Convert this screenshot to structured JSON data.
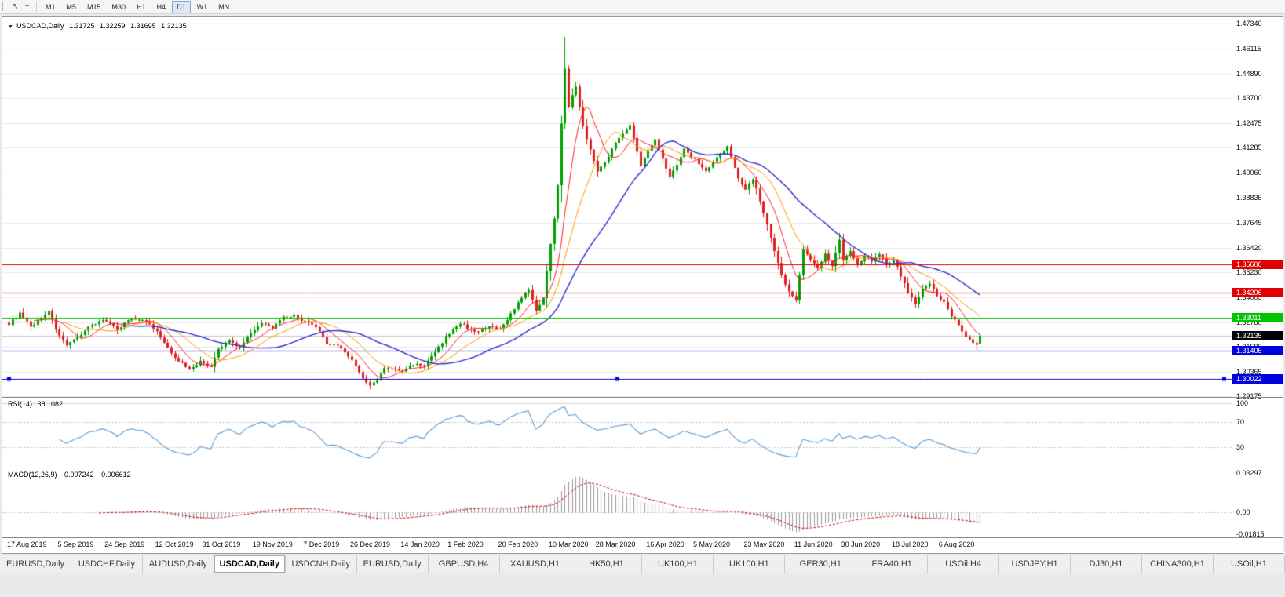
{
  "toolbar": {
    "left_icons": [
      {
        "name": "pointer-icon",
        "glyph": "↖"
      },
      {
        "name": "crosshair-icon",
        "glyph": "+"
      }
    ],
    "timeframes": [
      "M1",
      "M5",
      "M15",
      "M30",
      "H1",
      "H4",
      "D1",
      "W1",
      "MN"
    ],
    "active_timeframe": "D1"
  },
  "chart": {
    "symbol_title": "USDCAD,Daily",
    "ohlc": {
      "open": "1.31725",
      "high": "1.32259",
      "low": "1.31695",
      "close": "1.32135"
    },
    "price_axis": {
      "max": 1.4734,
      "min": 1.29175,
      "labels": [
        "1.47340",
        "1.46115",
        "1.44890",
        "1.43700",
        "1.42475",
        "1.41285",
        "1.40060",
        "1.38835",
        "1.37645",
        "1.36420",
        "1.35230",
        "1.34005",
        "1.32780",
        "1.31590",
        "1.30365",
        "1.29175"
      ]
    },
    "levels": [
      {
        "price": 1.35606,
        "label": "1.35606",
        "color": "#e00000"
      },
      {
        "price": 1.34206,
        "label": "1.34206",
        "color": "#e00000"
      },
      {
        "price": 1.33011,
        "label": "1.33011",
        "color": "#00c400"
      },
      {
        "price": 1.31405,
        "label": "1.31405",
        "color": "#0000dd"
      },
      {
        "price": 1.30022,
        "label": "1.30022",
        "color": "#0000dd",
        "handles": true
      }
    ],
    "current_price": {
      "value": 1.32135,
      "label": "1.32135",
      "bg": "#000000"
    },
    "date_ticks": [
      {
        "label": "17 Aug 2019",
        "i": 0
      },
      {
        "label": "5 Sep 2019",
        "i": 14
      },
      {
        "label": "24 Sep 2019",
        "i": 27
      },
      {
        "label": "12 Oct 2019",
        "i": 41
      },
      {
        "label": "31 Oct 2019",
        "i": 54
      },
      {
        "label": "19 Nov 2019",
        "i": 68
      },
      {
        "label": "7 Dec 2019",
        "i": 82
      },
      {
        "label": "26 Dec 2019",
        "i": 95
      },
      {
        "label": "14 Jan 2020",
        "i": 109
      },
      {
        "label": "1 Feb 2020",
        "i": 122
      },
      {
        "label": "20 Feb 2020",
        "i": 136
      },
      {
        "label": "10 Mar 2020",
        "i": 150
      },
      {
        "label": "28 Mar 2020",
        "i": 163
      },
      {
        "label": "16 Apr 2020",
        "i": 177
      },
      {
        "label": "5 May 2020",
        "i": 190
      },
      {
        "label": "23 May 2020",
        "i": 204
      },
      {
        "label": "11 Jun 2020",
        "i": 218
      },
      {
        "label": "30 Jun 2020",
        "i": 231
      },
      {
        "label": "18 Jul 2020",
        "i": 245
      },
      {
        "label": "6 Aug 2020",
        "i": 258
      }
    ]
  },
  "rsi": {
    "title": "RSI(14)",
    "value": "38.1082",
    "line_color": "#5b9bd5",
    "axis_labels": [
      {
        "v": 100,
        "label": "100"
      },
      {
        "v": 70,
        "label": "70"
      },
      {
        "v": 30,
        "label": "30"
      }
    ]
  },
  "macd": {
    "title": "MACD(12,26,9)",
    "value_main": "-0.007242",
    "value_signal": "-0.006612",
    "max": 0.03297,
    "min": -0.01815,
    "axis_labels": [
      {
        "v": 0.03297,
        "label": "0.03297"
      },
      {
        "v": 0,
        "label": "0.00"
      },
      {
        "v": -0.01815,
        "label": "-0.01815"
      }
    ]
  },
  "chart_data": {
    "type": "candlestick",
    "symbol": "USDCAD",
    "timeframe": "Daily",
    "x_range": [
      "17 Aug 2019",
      "mid Aug 2020"
    ],
    "y_range": [
      1.29175,
      1.4734
    ],
    "candles_total": 270,
    "noise": 0.0012,
    "close_waypoints": [
      [
        0,
        1.327
      ],
      [
        3,
        1.332
      ],
      [
        6,
        1.3255
      ],
      [
        9,
        1.33
      ],
      [
        11,
        1.3335
      ],
      [
        13,
        1.3245
      ],
      [
        16,
        1.316
      ],
      [
        19,
        1.3205
      ],
      [
        22,
        1.3255
      ],
      [
        26,
        1.329
      ],
      [
        30,
        1.3245
      ],
      [
        34,
        1.33
      ],
      [
        38,
        1.328
      ],
      [
        41,
        1.323
      ],
      [
        44,
        1.315
      ],
      [
        47,
        1.309
      ],
      [
        50,
        1.305
      ],
      [
        53,
        1.3085
      ],
      [
        56,
        1.306
      ],
      [
        58,
        1.3145
      ],
      [
        61,
        1.319
      ],
      [
        64,
        1.3155
      ],
      [
        67,
        1.323
      ],
      [
        70,
        1.327
      ],
      [
        73,
        1.325
      ],
      [
        76,
        1.33
      ],
      [
        79,
        1.331
      ],
      [
        82,
        1.328
      ],
      [
        85,
        1.3255
      ],
      [
        88,
        1.3175
      ],
      [
        91,
        1.3165
      ],
      [
        94,
        1.3115
      ],
      [
        96,
        1.307
      ],
      [
        98,
        1.3
      ],
      [
        100,
        1.2968
      ],
      [
        102,
        1.2995
      ],
      [
        104,
        1.3055
      ],
      [
        107,
        1.3045
      ],
      [
        109,
        1.304
      ],
      [
        112,
        1.3075
      ],
      [
        115,
        1.3065
      ],
      [
        118,
        1.313
      ],
      [
        121,
        1.3205
      ],
      [
        123,
        1.324
      ],
      [
        125,
        1.3275
      ],
      [
        127,
        1.325
      ],
      [
        130,
        1.323
      ],
      [
        133,
        1.3255
      ],
      [
        136,
        1.324
      ],
      [
        139,
        1.332
      ],
      [
        142,
        1.3395
      ],
      [
        144,
        1.344
      ],
      [
        146,
        1.333
      ],
      [
        148,
        1.34
      ],
      [
        150,
        1.366
      ],
      [
        151,
        1.378
      ],
      [
        152,
        1.395
      ],
      [
        153,
        1.425
      ],
      [
        154,
        1.452
      ],
      [
        155,
        1.433
      ],
      [
        157,
        1.443
      ],
      [
        159,
        1.423
      ],
      [
        161,
        1.412
      ],
      [
        163,
        1.401
      ],
      [
        166,
        1.409
      ],
      [
        169,
        1.418
      ],
      [
        172,
        1.424
      ],
      [
        175,
        1.404
      ],
      [
        177,
        1.411
      ],
      [
        179,
        1.417
      ],
      [
        181,
        1.408
      ],
      [
        183,
        1.3985
      ],
      [
        185,
        1.405
      ],
      [
        187,
        1.412
      ],
      [
        190,
        1.407
      ],
      [
        193,
        1.4015
      ],
      [
        196,
        1.408
      ],
      [
        199,
        1.413
      ],
      [
        202,
        1.3985
      ],
      [
        204,
        1.3925
      ],
      [
        206,
        1.398
      ],
      [
        208,
        1.387
      ],
      [
        210,
        1.375
      ],
      [
        212,
        1.362
      ],
      [
        214,
        1.3505
      ],
      [
        216,
        1.3425
      ],
      [
        218,
        1.339
      ],
      [
        220,
        1.363
      ],
      [
        222,
        1.3585
      ],
      [
        224,
        1.3545
      ],
      [
        226,
        1.361
      ],
      [
        228,
        1.3555
      ],
      [
        230,
        1.368
      ],
      [
        231,
        1.3585
      ],
      [
        233,
        1.3625
      ],
      [
        235,
        1.3555
      ],
      [
        237,
        1.3605
      ],
      [
        239,
        1.358
      ],
      [
        241,
        1.3615
      ],
      [
        243,
        1.3555
      ],
      [
        245,
        1.3585
      ],
      [
        247,
        1.3505
      ],
      [
        249,
        1.3425
      ],
      [
        251,
        1.3365
      ],
      [
        253,
        1.3445
      ],
      [
        255,
        1.3465
      ],
      [
        257,
        1.3405
      ],
      [
        259,
        1.3375
      ],
      [
        261,
        1.3305
      ],
      [
        263,
        1.3265
      ],
      [
        265,
        1.3205
      ],
      [
        267,
        1.3175
      ],
      [
        268,
        1.3165
      ],
      [
        269,
        1.32135
      ]
    ],
    "anchor_candles": [
      {
        "i": 100,
        "low": 1.2952
      },
      {
        "i": 154,
        "high": 1.4669
      },
      {
        "i": 268,
        "low": 1.3142
      },
      {
        "i": 269,
        "open": 1.31725,
        "high": 1.32259,
        "low": 1.31695,
        "close": 1.32135
      }
    ],
    "moving_averages": [
      {
        "period": 8,
        "color": "#ff2020",
        "width": 1
      },
      {
        "period": 16,
        "color": "#ff9900",
        "width": 1
      },
      {
        "period": 32,
        "color": "#2f2fd0",
        "width": 1.4
      }
    ],
    "indicators": {
      "rsi_period": 14,
      "macd": [
        12,
        26,
        9
      ]
    },
    "colors": {
      "up": "#00a000",
      "down": "#e02020",
      "grid": "#e9e9e9",
      "bid_line": "#c8c8c8",
      "macd_histogram": "#9a9a9a",
      "macd_signal": "#e00000"
    }
  },
  "tabs": {
    "active_index": 3,
    "items": [
      "EURUSD,Daily",
      "USDCHF,Daily",
      "AUDUSD,Daily",
      "USDCAD,Daily",
      "USDCNH,Daily",
      "EURUSD,Daily",
      "GBPUSD,H4",
      "XAUUSD,H1",
      "HK50,H1",
      "UK100,H1",
      "UK100,H1",
      "GER30,H1",
      "FRA40,H1",
      "USOil,H4",
      "USDJPY,H1",
      "DJ30,H1",
      "CHINA300,H1",
      "USOil,H1"
    ]
  }
}
